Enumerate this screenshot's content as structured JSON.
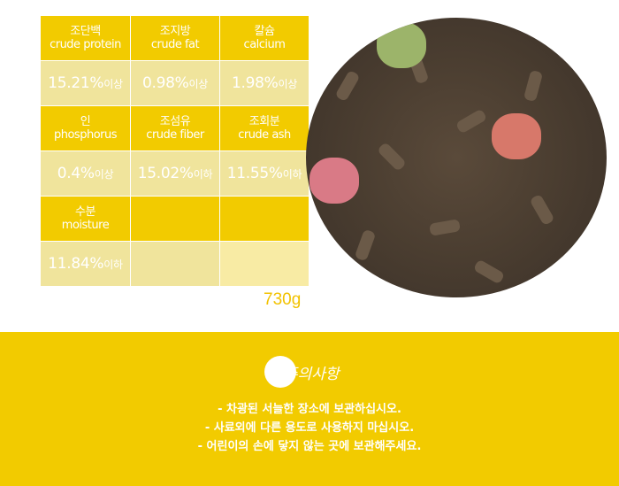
{
  "nutrition_table": [
    {
      "kr": "조단백",
      "en": "crude protein",
      "value": "15.21%",
      "qualifier": "이상"
    },
    {
      "kr": "조지방",
      "en": "crude fat",
      "value": "0.98%",
      "qualifier": "이상"
    },
    {
      "kr": "칼슘",
      "en": "calcium",
      "value": "1.98%",
      "qualifier": "이상"
    },
    {
      "kr": "인",
      "en": "phosphorus",
      "value": "0.4%",
      "qualifier": "이상"
    },
    {
      "kr": "조섬유",
      "en": "crude fiber",
      "value": "15.02%",
      "qualifier": "이하"
    },
    {
      "kr": "조회분",
      "en": "crude ash",
      "value": "11.55%",
      "qualifier": "이하"
    },
    {
      "kr": "수분",
      "en": "moisture",
      "value": "11.84%",
      "qualifier": "이하"
    }
  ],
  "weight": "730g",
  "caution": {
    "title": "주의사항",
    "notes": [
      "- 차광된 서늘한 장소에 보관하십시오.",
      "- 사료외에 다른 용도로 사용하지 마십시오.",
      "- 어린이의 손에 닿지 않는 곳에 보관해주세요."
    ]
  },
  "colors": {
    "accent": "#f2cb00",
    "value_bg": "#f0e49c"
  }
}
